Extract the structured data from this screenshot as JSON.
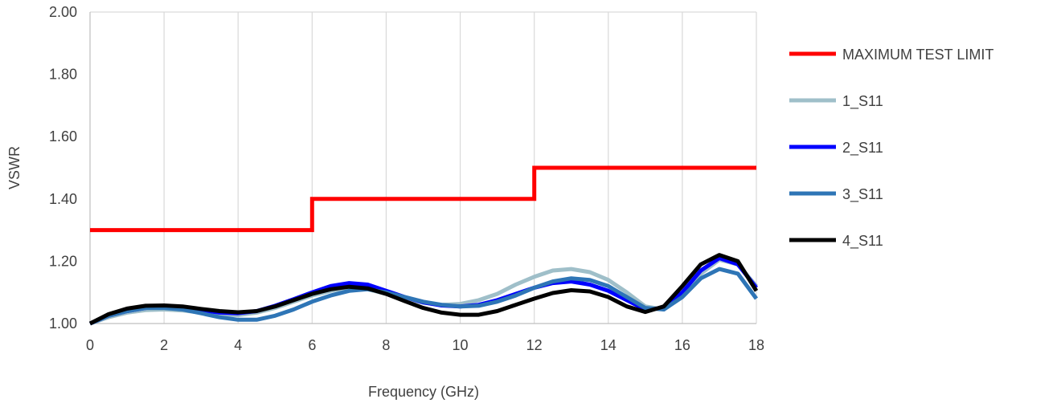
{
  "chart_data": {
    "type": "line",
    "title": "",
    "xlabel": "Frequency (GHz)",
    "ylabel": "VSWR",
    "xlim": [
      0,
      18
    ],
    "ylim": [
      1.0,
      2.0
    ],
    "x_ticks": [
      "0",
      "2",
      "4",
      "6",
      "8",
      "10",
      "12",
      "14",
      "16",
      "18"
    ],
    "y_ticks": [
      "1.00",
      "1.20",
      "1.40",
      "1.60",
      "1.80",
      "2.00"
    ],
    "grid": "vertical",
    "legend_position": "right",
    "series": [
      {
        "name": "MAXIMUM TEST LIMIT",
        "color": "#ff0000",
        "x": [
          0,
          6,
          6,
          12,
          12,
          18
        ],
        "y": [
          1.3,
          1.3,
          1.4,
          1.4,
          1.5,
          1.5
        ]
      },
      {
        "name": "1_S11",
        "color": "#9fbfc9",
        "x": [
          0,
          0.5,
          1,
          1.5,
          2,
          2.5,
          3,
          3.5,
          4,
          4.5,
          5,
          5.5,
          6,
          6.5,
          7,
          7.5,
          8,
          8.5,
          9,
          9.5,
          10,
          10.5,
          11,
          11.5,
          12,
          12.5,
          13,
          13.5,
          14,
          14.5,
          15,
          15.5,
          16,
          16.5,
          17,
          17.5,
          18
        ],
        "y": [
          1.0,
          1.02,
          1.035,
          1.043,
          1.045,
          1.042,
          1.035,
          1.028,
          1.027,
          1.035,
          1.05,
          1.07,
          1.09,
          1.105,
          1.115,
          1.11,
          1.095,
          1.08,
          1.067,
          1.06,
          1.063,
          1.075,
          1.095,
          1.125,
          1.15,
          1.17,
          1.175,
          1.165,
          1.14,
          1.1,
          1.055,
          1.045,
          1.09,
          1.16,
          1.205,
          1.19,
          1.12
        ]
      },
      {
        "name": "2_S11",
        "color": "#0000ff",
        "x": [
          0,
          0.5,
          1,
          1.5,
          2,
          2.5,
          3,
          3.5,
          4,
          4.5,
          5,
          5.5,
          6,
          6.5,
          7,
          7.5,
          8,
          8.5,
          9,
          9.5,
          10,
          10.5,
          11,
          11.5,
          12,
          12.5,
          13,
          13.5,
          14,
          14.5,
          15,
          15.5,
          16,
          16.5,
          17,
          17.5,
          18
        ],
        "y": [
          1.0,
          1.025,
          1.04,
          1.05,
          1.053,
          1.05,
          1.043,
          1.035,
          1.033,
          1.04,
          1.057,
          1.078,
          1.1,
          1.12,
          1.13,
          1.125,
          1.105,
          1.085,
          1.068,
          1.058,
          1.055,
          1.06,
          1.075,
          1.095,
          1.115,
          1.13,
          1.135,
          1.125,
          1.105,
          1.075,
          1.045,
          1.05,
          1.1,
          1.17,
          1.21,
          1.19,
          1.115
        ]
      },
      {
        "name": "3_S11",
        "color": "#2e75b6",
        "x": [
          0,
          0.5,
          1,
          1.5,
          2,
          2.5,
          3,
          3.5,
          4,
          4.5,
          5,
          5.5,
          6,
          6.5,
          7,
          7.5,
          8,
          8.5,
          9,
          9.5,
          10,
          10.5,
          11,
          11.5,
          12,
          12.5,
          13,
          13.5,
          14,
          14.5,
          15,
          15.5,
          16,
          16.5,
          17,
          17.5,
          18
        ],
        "y": [
          1.0,
          1.025,
          1.04,
          1.05,
          1.05,
          1.045,
          1.033,
          1.02,
          1.012,
          1.012,
          1.025,
          1.045,
          1.07,
          1.09,
          1.105,
          1.11,
          1.1,
          1.085,
          1.07,
          1.06,
          1.055,
          1.057,
          1.07,
          1.09,
          1.115,
          1.135,
          1.145,
          1.14,
          1.12,
          1.085,
          1.05,
          1.045,
          1.085,
          1.145,
          1.175,
          1.16,
          1.08
        ]
      },
      {
        "name": "4_S11",
        "color": "#000000",
        "x": [
          0,
          0.5,
          1,
          1.5,
          2,
          2.5,
          3,
          3.5,
          4,
          4.5,
          5,
          5.5,
          6,
          6.5,
          7,
          7.5,
          8,
          8.5,
          9,
          9.5,
          10,
          10.5,
          11,
          11.5,
          12,
          12.5,
          13,
          13.5,
          14,
          14.5,
          15,
          15.5,
          16,
          16.5,
          17,
          17.5,
          18
        ],
        "y": [
          1.0,
          1.03,
          1.048,
          1.057,
          1.058,
          1.055,
          1.047,
          1.04,
          1.036,
          1.04,
          1.055,
          1.075,
          1.095,
          1.11,
          1.118,
          1.113,
          1.095,
          1.072,
          1.05,
          1.035,
          1.028,
          1.028,
          1.04,
          1.06,
          1.08,
          1.098,
          1.107,
          1.103,
          1.085,
          1.055,
          1.037,
          1.055,
          1.12,
          1.19,
          1.22,
          1.2,
          1.105
        ]
      }
    ]
  }
}
